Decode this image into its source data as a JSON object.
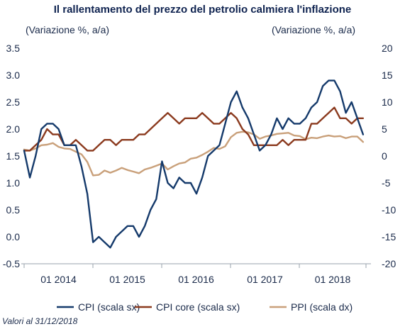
{
  "chart_data": {
    "type": "line",
    "title": "Il rallentamento del prezzo del petrolio calmiera l'inflazione",
    "ylabel_left": "(Variazione %, a/a)",
    "ylabel_right": "(Variazione %, a/a)",
    "source": "Valori al 31/12/2018",
    "x_ticks": [
      "01 2014",
      "01 2015",
      "01 2016",
      "01 2017",
      "01 2018"
    ],
    "ylim_left": [
      -0.5,
      3.5
    ],
    "yticks_left": [
      "3.5",
      "3.0",
      "2.5",
      "2.0",
      "1.5",
      "1.0",
      "0.5",
      "0.0",
      "-0.5"
    ],
    "ylim_right": [
      -20,
      20
    ],
    "yticks_right": [
      "20",
      "15",
      "10",
      "5",
      "0",
      "-5",
      "-10",
      "-15",
      "-20"
    ],
    "grid": false,
    "legend_position": "bottom",
    "x_start": "2014-01",
    "series": [
      {
        "name": "CPI (scala sx)",
        "axis": "left",
        "color": "#153a6b",
        "values": [
          1.6,
          1.1,
          1.5,
          2.0,
          2.1,
          2.1,
          2.0,
          1.7,
          1.7,
          1.7,
          1.3,
          0.8,
          -0.1,
          0.0,
          -0.1,
          -0.2,
          0.0,
          0.1,
          0.2,
          0.2,
          0.0,
          0.2,
          0.5,
          0.7,
          1.4,
          1.0,
          0.9,
          1.1,
          1.0,
          1.0,
          0.8,
          1.1,
          1.5,
          1.6,
          1.7,
          2.1,
          2.5,
          2.7,
          2.4,
          2.2,
          1.9,
          1.6,
          1.7,
          1.9,
          2.2,
          2.0,
          2.2,
          2.1,
          2.1,
          2.2,
          2.4,
          2.5,
          2.8,
          2.9,
          2.9,
          2.7,
          2.3,
          2.5,
          2.2,
          1.9
        ]
      },
      {
        "name": "CPI core (scala sx)",
        "axis": "left",
        "color": "#8b3a1e",
        "values": [
          1.6,
          1.6,
          1.7,
          1.8,
          2.0,
          1.9,
          1.9,
          1.7,
          1.7,
          1.8,
          1.7,
          1.6,
          1.6,
          1.7,
          1.8,
          1.8,
          1.7,
          1.8,
          1.8,
          1.8,
          1.9,
          1.9,
          2.0,
          2.1,
          2.2,
          2.3,
          2.2,
          2.1,
          2.2,
          2.2,
          2.2,
          2.3,
          2.2,
          2.1,
          2.1,
          2.2,
          2.3,
          2.2,
          2.0,
          1.9,
          1.7,
          1.7,
          1.7,
          1.7,
          1.7,
          1.8,
          1.7,
          1.8,
          1.8,
          1.8,
          2.1,
          2.1,
          2.2,
          2.3,
          2.4,
          2.2,
          2.2,
          2.1,
          2.2,
          2.2
        ]
      },
      {
        "name": "PPI (scala dx)",
        "axis": "right",
        "color": "#c9a07a",
        "values": [
          1.2,
          1.0,
          1.4,
          2.0,
          2.1,
          2.4,
          1.7,
          1.4,
          1.3,
          0.8,
          0.3,
          -1.1,
          -3.6,
          -3.5,
          -2.7,
          -3.1,
          -2.7,
          -2.2,
          -2.6,
          -2.9,
          -3.2,
          -2.5,
          -2.2,
          -1.8,
          -1.4,
          -2.5,
          -1.9,
          -1.4,
          -1.2,
          -0.5,
          -0.3,
          0.2,
          0.8,
          1.5,
          1.3,
          1.8,
          3.5,
          4.3,
          4.5,
          4.4,
          4.0,
          3.2,
          3.6,
          3.8,
          4.1,
          4.2,
          4.3,
          3.8,
          3.7,
          3.1,
          3.4,
          3.3,
          3.6,
          3.8,
          3.6,
          3.7,
          3.3,
          3.6,
          3.6,
          2.6
        ]
      }
    ]
  }
}
